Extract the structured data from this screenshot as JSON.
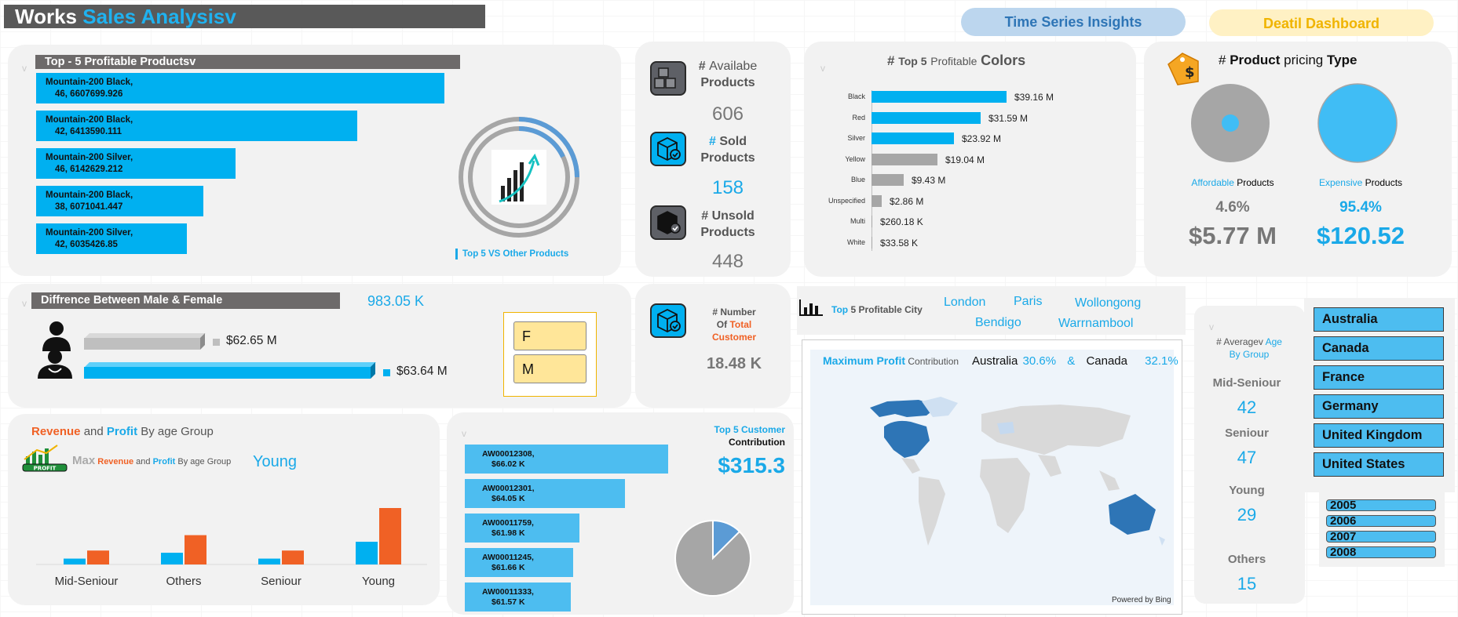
{
  "title": {
    "part1": "Works",
    "part2": "Sales Analysisv"
  },
  "nav": {
    "time_series": "Time Series Insights",
    "detail": "Deatil Dashboard"
  },
  "top_products": {
    "header": "Top - 5 Profitable Productsv",
    "items": [
      {
        "line1": "Mountain-200 Black,",
        "line2": "46, 6607699.926",
        "value": 6607699.926
      },
      {
        "line1": "Mountain-200 Black,",
        "line2": "42, 6413590.111",
        "value": 6413590.111
      },
      {
        "line1": "Mountain-200 Silver,",
        "line2": "46, 6142629.212",
        "value": 6142629.212
      },
      {
        "line1": "Mountain-200 Black,",
        "line2": "38, 6071041.447",
        "value": 6071041.447
      },
      {
        "line1": "Mountain-200 Silver,",
        "line2": "42, 6035426.85",
        "value": 6035426.85
      }
    ],
    "legend": "Top 5 VS Other Products"
  },
  "products_kpi": {
    "available": {
      "hash": "#",
      "line1": "Availabe",
      "line2": "Products",
      "value": "606"
    },
    "sold": {
      "hash": "#",
      "line1": "Sold",
      "line2": "Products",
      "value": "158"
    },
    "unsold": {
      "hash": "#",
      "line1": "Unsold",
      "line2": "Products",
      "value": "448"
    }
  },
  "colors": {
    "title": {
      "hash": "#",
      "top": "Top 5",
      "profitable": "Profitable",
      "colors": "Colors"
    },
    "chart_data": {
      "type": "bar",
      "categories": [
        "Black",
        "Red",
        "Silver",
        "Yellow",
        "Blue",
        "Unspecified",
        "Multi",
        "White"
      ],
      "values": [
        39.16,
        31.59,
        23.92,
        19.04,
        9.43,
        2.86,
        0.26018,
        0.03358
      ],
      "labels": [
        "$39.16 M",
        "$31.59 M",
        "$23.92 M",
        "$19.04 M",
        "$9.43 M",
        "$2.86 M",
        "$260.18 K",
        "$33.58 K"
      ],
      "highlight": [
        "#00b0f0",
        "#00b0f0",
        "#00b0f0",
        "#a6a6a6",
        "#a6a6a6",
        "#a6a6a6",
        "#a6a6a6",
        "#a6a6a6"
      ]
    }
  },
  "pricing": {
    "title": {
      "hash": "#",
      "product": "Product",
      "pricing": "pricing",
      "type": "Type"
    },
    "affordable": {
      "word": "Affordable",
      "suffix": "Products",
      "pct": "4.6%",
      "amount": "$5.77 M"
    },
    "expensive": {
      "word": "Expensive",
      "suffix": "Products",
      "pct": "95.4%",
      "amount": "$120.52"
    }
  },
  "gender": {
    "header": "Diffrence Between  Male & Female",
    "diff": "983.05 K",
    "female_value": "$62.65 M",
    "male_value": "$63.64 M",
    "slicer": [
      "F",
      "M"
    ]
  },
  "customers_kpi": {
    "hash": "# Number",
    "of": "Of",
    "total": "Total",
    "customer": "Customer",
    "value": "18.48 K"
  },
  "cities": {
    "top": "Top",
    "rest": "5 Profitable City",
    "list": [
      "London",
      "Paris",
      "Wollongong",
      "Bendigo",
      "Warrnambool"
    ]
  },
  "map": {
    "label_max": "Maximum Profit",
    "label_contrib": "Contribution",
    "country1": "Australia",
    "pct1": "30.6%",
    "amp": "&",
    "country2": "Canada",
    "pct2": "32.1%",
    "powered": "Powered by Bing"
  },
  "age_avg": {
    "title1": "# Averagev",
    "title_age": "Age",
    "title2": "By Group",
    "groups": [
      {
        "label": "Mid-Seniour",
        "value": "42"
      },
      {
        "label": "Seniour",
        "value": "47"
      },
      {
        "label": "Young",
        "value": "29"
      },
      {
        "label": "Others",
        "value": "15"
      }
    ]
  },
  "countries": [
    "Australia",
    "Canada",
    "France",
    "Germany",
    "United Kingdom",
    "United States"
  ],
  "years": [
    "2005",
    "2006",
    "2007",
    "2008"
  ],
  "revenue": {
    "title_rev": "Revenue",
    "title_and": "and",
    "title_profit": "Profit",
    "title_rest": "By age Group",
    "max_label": "Max",
    "max_rev": "Revenue",
    "max_and": "and",
    "max_profit": "Profit",
    "max_rest": "By age Group",
    "max_value": "Young",
    "chart_data": {
      "type": "bar",
      "categories": [
        "Mid-Seniour",
        "Others",
        "Seniour",
        "Young"
      ],
      "series": [
        {
          "name": "Profit",
          "values": [
            8,
            16,
            8,
            31
          ],
          "color": "#00b0f0"
        },
        {
          "name": "Revenue",
          "values": [
            19,
            40,
            19,
            77
          ],
          "color": "#f06125"
        }
      ]
    }
  },
  "top_customers": {
    "title1": "Top  5 Customer",
    "title2": "Contribution",
    "value": "$315.3",
    "items": [
      {
        "id": "AW00012308,",
        "amt": "$66.02 K",
        "value": 66.02
      },
      {
        "id": "AW00012301,",
        "amt": "$64.05 K",
        "value": 64.05
      },
      {
        "id": "AW00011759,",
        "amt": "$61.98 K",
        "value": 61.98
      },
      {
        "id": "AW00011245,",
        "amt": "$61.66 K",
        "value": 61.66
      },
      {
        "id": "AW00011333,",
        "amt": "$61.57 K",
        "value": 61.57
      }
    ]
  }
}
